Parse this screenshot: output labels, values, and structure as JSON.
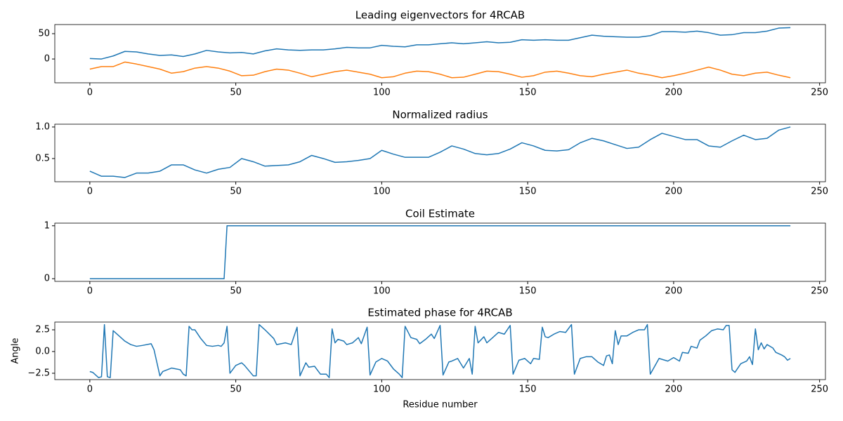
{
  "chart_data": [
    {
      "type": "line",
      "title": "Leading eigenvectors for 4RCAB",
      "x": [
        0,
        4,
        8,
        12,
        16,
        20,
        24,
        28,
        32,
        36,
        40,
        44,
        48,
        52,
        56,
        60,
        64,
        68,
        72,
        76,
        80,
        84,
        88,
        92,
        96,
        100,
        104,
        108,
        112,
        116,
        120,
        124,
        128,
        132,
        136,
        140,
        144,
        148,
        152,
        156,
        160,
        164,
        168,
        172,
        176,
        180,
        184,
        188,
        192,
        196,
        200,
        204,
        208,
        212,
        216,
        220,
        224,
        228,
        232,
        236,
        240
      ],
      "series": [
        {
          "color": "#1f77b4",
          "values": [
            1,
            0,
            6,
            15,
            14,
            10,
            7,
            8,
            5,
            10,
            17,
            14,
            12,
            13,
            10,
            16,
            20,
            18,
            17,
            18,
            18,
            20,
            23,
            22,
            22,
            27,
            25,
            24,
            28,
            28,
            30,
            32,
            30,
            32,
            34,
            32,
            33,
            38,
            37,
            38,
            37,
            37,
            42,
            47,
            45,
            44,
            43,
            43,
            46,
            54,
            54,
            53,
            55,
            52,
            47,
            48,
            52,
            52,
            55,
            61,
            62
          ]
        },
        {
          "color": "#ff7f0e",
          "values": [
            -20,
            -15,
            -15,
            -6,
            -10,
            -15,
            -20,
            -28,
            -25,
            -18,
            -15,
            -18,
            -24,
            -33,
            -32,
            -25,
            -20,
            -22,
            -28,
            -35,
            -30,
            -25,
            -22,
            -26,
            -30,
            -37,
            -35,
            -28,
            -24,
            -25,
            -30,
            -37,
            -36,
            -30,
            -24,
            -25,
            -30,
            -36,
            -33,
            -26,
            -24,
            -28,
            -33,
            -35,
            -30,
            -26,
            -22,
            -28,
            -32,
            -37,
            -33,
            -28,
            -22,
            -16,
            -22,
            -30,
            -33,
            -28,
            -26,
            -32,
            -37
          ]
        }
      ],
      "xlim": [
        -12,
        252
      ],
      "ylim": [
        -47,
        68
      ],
      "xticks": [
        0,
        50,
        100,
        150,
        200,
        250
      ],
      "yticks": [
        0,
        50
      ]
    },
    {
      "type": "line",
      "title": "Normalized radius",
      "x": [
        0,
        4,
        8,
        12,
        16,
        20,
        24,
        28,
        32,
        36,
        40,
        44,
        48,
        52,
        56,
        60,
        64,
        68,
        72,
        76,
        80,
        84,
        88,
        92,
        96,
        100,
        104,
        108,
        112,
        116,
        120,
        124,
        128,
        132,
        136,
        140,
        144,
        148,
        152,
        156,
        160,
        164,
        168,
        172,
        176,
        180,
        184,
        188,
        192,
        196,
        200,
        204,
        208,
        212,
        216,
        220,
        224,
        228,
        232,
        236,
        240
      ],
      "series": [
        {
          "color": "#1f77b4",
          "values": [
            0.3,
            0.22,
            0.22,
            0.2,
            0.27,
            0.27,
            0.3,
            0.4,
            0.4,
            0.32,
            0.27,
            0.33,
            0.36,
            0.5,
            0.45,
            0.38,
            0.39,
            0.4,
            0.45,
            0.55,
            0.5,
            0.44,
            0.45,
            0.47,
            0.5,
            0.63,
            0.57,
            0.52,
            0.52,
            0.52,
            0.6,
            0.7,
            0.65,
            0.58,
            0.56,
            0.58,
            0.65,
            0.75,
            0.7,
            0.63,
            0.62,
            0.64,
            0.75,
            0.82,
            0.78,
            0.72,
            0.66,
            0.68,
            0.8,
            0.9,
            0.85,
            0.8,
            0.8,
            0.7,
            0.68,
            0.78,
            0.87,
            0.8,
            0.82,
            0.95,
            1.0
          ]
        }
      ],
      "xlim": [
        -12,
        252
      ],
      "ylim": [
        0.133,
        1.044
      ],
      "xticks": [
        0,
        50,
        100,
        150,
        200,
        250
      ],
      "yticks": [
        0.5,
        {
          "value": 1,
          "label": "1.0"
        }
      ]
    },
    {
      "type": "line",
      "title": "Coil Estimate",
      "x": [
        0,
        46,
        47,
        240
      ],
      "series": [
        {
          "color": "#1f77b4",
          "values": [
            0,
            0,
            1,
            1
          ]
        }
      ],
      "xlim": [
        -12,
        252
      ],
      "ylim": [
        -0.05,
        1.05
      ],
      "xticks": [
        0,
        50,
        100,
        150,
        200,
        250
      ],
      "yticks": [
        0,
        1
      ]
    },
    {
      "type": "line",
      "title": "Estimated phase for 4RCAB",
      "x_label": "Residue number",
      "y_label": "Angle",
      "x": [
        0,
        1,
        3,
        4,
        5,
        6,
        7,
        8,
        10,
        12,
        14,
        16,
        18,
        21,
        22,
        24,
        25,
        28,
        31,
        32,
        33,
        34,
        35,
        36,
        38,
        40,
        42,
        44,
        45,
        46,
        47,
        48,
        50,
        52,
        53,
        56,
        57,
        58,
        60,
        63,
        64,
        67,
        69,
        71,
        72,
        74,
        75,
        77,
        79,
        81,
        82,
        83,
        84,
        85,
        87,
        88,
        90,
        92,
        93,
        95,
        96,
        98,
        100,
        102,
        104,
        106,
        107,
        108,
        110,
        112,
        113,
        115,
        117,
        118,
        120,
        121,
        123,
        124,
        126,
        128,
        130,
        131,
        132,
        133,
        135,
        136,
        138,
        140,
        142,
        144,
        145,
        147,
        149,
        151,
        152,
        154,
        155,
        156,
        157,
        159,
        161,
        163,
        165,
        166,
        168,
        170,
        172,
        174,
        176,
        177,
        178,
        179,
        180,
        181,
        182,
        184,
        186,
        188,
        190,
        191,
        192,
        195,
        197,
        198,
        200,
        202,
        203,
        205,
        206,
        208,
        209,
        211,
        213,
        215,
        217,
        218,
        219,
        220,
        221,
        223,
        225,
        226,
        227,
        228,
        229,
        230,
        231,
        232,
        234,
        235,
        237,
        238,
        239,
        240
      ],
      "series": [
        {
          "color": "#1f77b4",
          "values": [
            -2.3,
            -2.4,
            -3.0,
            -2.9,
            3.1,
            -2.9,
            -3.0,
            2.4,
            1.8,
            1.2,
            0.8,
            0.6,
            0.7,
            0.9,
            0.2,
            -2.8,
            -2.3,
            -1.9,
            -2.1,
            -2.6,
            -2.8,
            2.9,
            2.5,
            2.5,
            1.5,
            0.7,
            0.6,
            0.7,
            0.6,
            1.0,
            2.9,
            -2.5,
            -1.6,
            -1.3,
            -1.6,
            -2.8,
            -2.8,
            3.1,
            2.5,
            1.5,
            0.8,
            1.0,
            0.8,
            2.8,
            -2.8,
            -1.3,
            -1.8,
            -1.7,
            -2.6,
            -2.6,
            -3.0,
            2.6,
            1.0,
            1.4,
            1.2,
            0.8,
            1.0,
            1.6,
            0.9,
            2.8,
            -2.7,
            -1.2,
            -0.8,
            -1.1,
            -2.0,
            -2.6,
            -3.0,
            2.9,
            1.6,
            1.4,
            0.9,
            1.4,
            2.0,
            1.5,
            3.0,
            -2.7,
            -1.2,
            -1.1,
            -0.8,
            -1.9,
            -0.8,
            -2.6,
            2.9,
            1.0,
            1.7,
            1.0,
            1.6,
            2.2,
            2.0,
            3.0,
            -2.6,
            -1.0,
            -0.8,
            -1.4,
            -0.8,
            -0.9,
            2.8,
            1.7,
            1.6,
            2.0,
            2.3,
            2.2,
            3.1,
            -2.6,
            -0.8,
            -0.6,
            -0.6,
            -1.2,
            -1.6,
            -0.5,
            -0.4,
            -1.4,
            2.4,
            0.8,
            1.8,
            1.8,
            2.2,
            2.5,
            2.5,
            3.1,
            -2.6,
            -0.8,
            -1.0,
            -1.1,
            -0.7,
            -1.1,
            -0.1,
            -0.2,
            0.6,
            0.4,
            1.3,
            1.8,
            2.4,
            2.6,
            2.5,
            3.0,
            3.0,
            -2.1,
            -2.4,
            -1.4,
            -1.1,
            -0.6,
            -1.5,
            2.6,
            0.2,
            1.0,
            0.3,
            0.8,
            0.4,
            -0.1,
            -0.4,
            -0.6,
            -1.0,
            -0.8
          ]
        }
      ],
      "xlim": [
        -12,
        252
      ],
      "ylim": [
        -3.23,
        3.39
      ],
      "xticks": [
        0,
        50,
        100,
        150,
        200,
        250
      ],
      "yticks": [
        {
          "value": -2.5,
          "label": "−2.5"
        },
        {
          "value": 0,
          "label": "0.0"
        },
        2.5
      ]
    }
  ]
}
